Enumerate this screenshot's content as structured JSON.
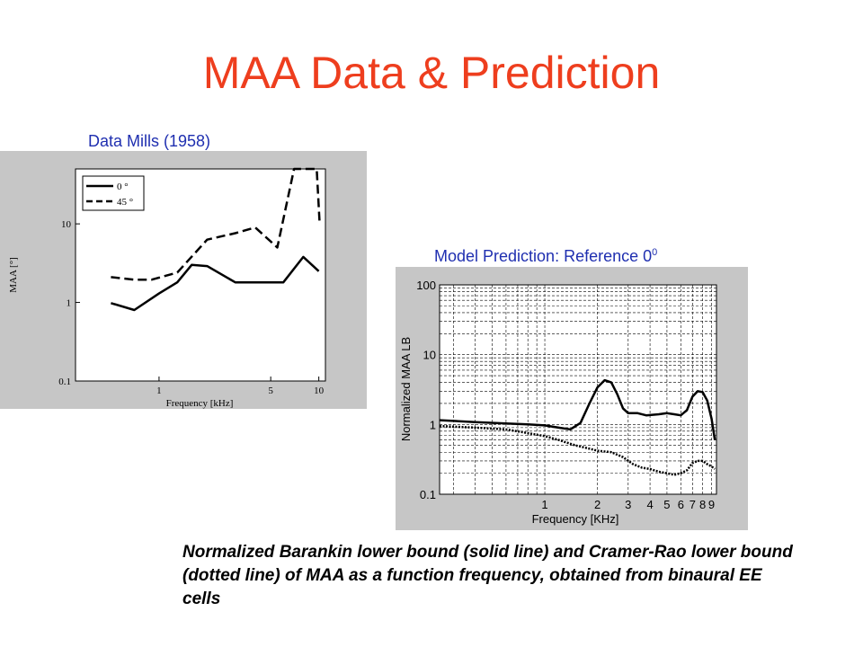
{
  "slide": {
    "title": "MAA Data & Prediction",
    "left_caption": "Data  Mills (1958)",
    "right_caption_main": "Model Prediction: Reference 0",
    "right_caption_sup": "0",
    "description": "Normalized Barankin lower bound (solid line) and Cramer-Rao lower bound  (dotted line) of MAA as a function frequency, obtained from binaural EE cells",
    "colors": {
      "title": "#ee3e1e",
      "caption": "#1f2fb0",
      "panel_bg": "#c6c6c6"
    }
  },
  "chart_data": [
    {
      "type": "line",
      "xlabel": "Frequency [kHz]",
      "ylabel": "MAA [°]",
      "x_scale": "log",
      "y_scale": "log",
      "xlim": [
        0.3,
        11
      ],
      "ylim": [
        0.1,
        50
      ],
      "xticks": [
        {
          "value": 1,
          "label": "1"
        },
        {
          "value": 5,
          "label": "5"
        },
        {
          "value": 10,
          "label": "10"
        }
      ],
      "yticks": [
        {
          "value": 0.1,
          "label": "0.1"
        },
        {
          "value": 1,
          "label": "1"
        },
        {
          "value": 10,
          "label": "10"
        }
      ],
      "legend_position": "top-left",
      "grid": false,
      "series": [
        {
          "name": "0 °",
          "style": "solid",
          "points": [
            [
              0.5,
              0.98
            ],
            [
              0.7,
              0.8
            ],
            [
              1.0,
              1.3
            ],
            [
              1.3,
              1.8
            ],
            [
              1.6,
              3.0
            ],
            [
              2.0,
              2.9
            ],
            [
              3.0,
              1.8
            ],
            [
              6.0,
              1.8
            ],
            [
              8.0,
              3.8
            ],
            [
              10.0,
              2.5
            ]
          ]
        },
        {
          "name": "45 °",
          "style": "dashed",
          "points": [
            [
              0.5,
              2.1
            ],
            [
              0.7,
              1.95
            ],
            [
              0.9,
              1.95
            ],
            [
              1.3,
              2.4
            ],
            [
              2.0,
              6.3
            ],
            [
              3.0,
              7.6
            ],
            [
              4.0,
              9.0
            ],
            [
              5.5,
              5.0
            ],
            [
              7.0,
              60
            ],
            [
              9.7,
              60
            ],
            [
              10.1,
              11
            ]
          ]
        }
      ]
    },
    {
      "type": "line",
      "xlabel": "Frequency [KHz]",
      "ylabel": "Normalized MAA LB",
      "x_scale": "log",
      "y_scale": "log",
      "xlim": [
        0.25,
        9.6
      ],
      "ylim": [
        0.1,
        100
      ],
      "xticks": [
        {
          "value": 1,
          "label": "1"
        },
        {
          "value": 2,
          "label": "2"
        },
        {
          "value": 3,
          "label": "3"
        },
        {
          "value": 4,
          "label": "4"
        },
        {
          "value": 5,
          "label": "5"
        },
        {
          "value": 6,
          "label": "6"
        },
        {
          "value": 7,
          "label": "7"
        },
        {
          "value": 8,
          "label": "8"
        },
        {
          "value": 9,
          "label": "9"
        }
      ],
      "yticks": [
        {
          "value": 0.1,
          "label": "0.1"
        },
        {
          "value": 1,
          "label": "1"
        },
        {
          "value": 10,
          "label": "10"
        },
        {
          "value": 100,
          "label": "100"
        }
      ],
      "grid": true,
      "series": [
        {
          "style": "solid",
          "points": [
            [
              0.25,
              1.15
            ],
            [
              0.4,
              1.08
            ],
            [
              0.6,
              1.03
            ],
            [
              0.8,
              1.0
            ],
            [
              1.0,
              0.97
            ],
            [
              1.2,
              0.9
            ],
            [
              1.4,
              0.85
            ],
            [
              1.6,
              1.05
            ],
            [
              1.8,
              2.0
            ],
            [
              2.0,
              3.4
            ],
            [
              2.2,
              4.3
            ],
            [
              2.4,
              4.0
            ],
            [
              2.6,
              2.7
            ],
            [
              2.8,
              1.7
            ],
            [
              3.0,
              1.45
            ],
            [
              3.4,
              1.45
            ],
            [
              3.8,
              1.35
            ],
            [
              4.5,
              1.4
            ],
            [
              5.0,
              1.45
            ],
            [
              5.5,
              1.4
            ],
            [
              6.0,
              1.35
            ],
            [
              6.5,
              1.6
            ],
            [
              7.0,
              2.5
            ],
            [
              7.5,
              3.0
            ],
            [
              8.0,
              2.9
            ],
            [
              8.5,
              2.2
            ],
            [
              9.0,
              1.2
            ],
            [
              9.4,
              0.6
            ]
          ]
        },
        {
          "style": "dotted",
          "points": [
            [
              0.25,
              0.95
            ],
            [
              0.4,
              0.9
            ],
            [
              0.6,
              0.85
            ],
            [
              0.8,
              0.75
            ],
            [
              1.0,
              0.68
            ],
            [
              1.2,
              0.6
            ],
            [
              1.5,
              0.5
            ],
            [
              1.8,
              0.45
            ],
            [
              2.0,
              0.42
            ],
            [
              2.4,
              0.4
            ],
            [
              2.8,
              0.34
            ],
            [
              3.2,
              0.27
            ],
            [
              3.6,
              0.24
            ],
            [
              4.0,
              0.23
            ],
            [
              4.5,
              0.21
            ],
            [
              5.0,
              0.2
            ],
            [
              5.5,
              0.19
            ],
            [
              6.0,
              0.2
            ],
            [
              6.5,
              0.22
            ],
            [
              7.0,
              0.28
            ],
            [
              7.5,
              0.3
            ],
            [
              8.0,
              0.3
            ],
            [
              8.5,
              0.27
            ],
            [
              9.0,
              0.25
            ],
            [
              9.4,
              0.23
            ]
          ]
        }
      ]
    }
  ]
}
